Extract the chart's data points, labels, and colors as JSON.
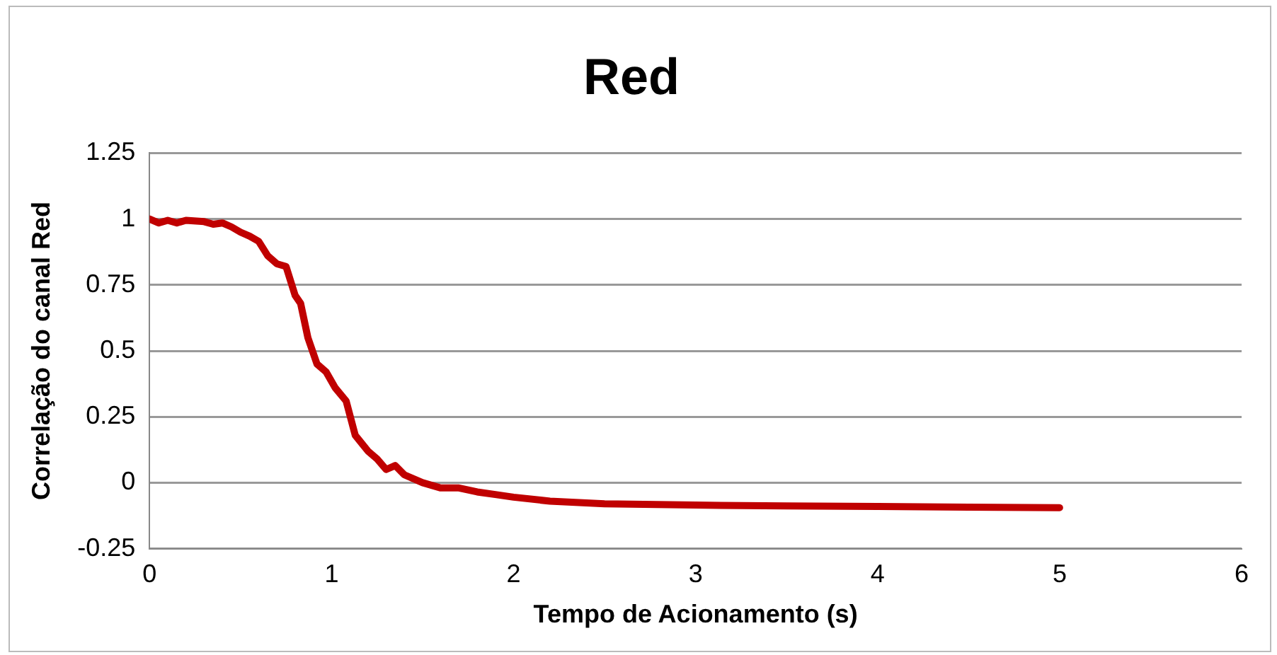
{
  "chart_data": {
    "type": "line",
    "title": "Red",
    "xlabel": "Tempo de Acionamento (s)",
    "ylabel": "Correlação do canal Red",
    "x": [
      0,
      0.05,
      0.1,
      0.15,
      0.2,
      0.3,
      0.35,
      0.4,
      0.45,
      0.5,
      0.55,
      0.6,
      0.65,
      0.7,
      0.75,
      0.8,
      0.83,
      0.87,
      0.92,
      0.97,
      1.02,
      1.08,
      1.13,
      1.2,
      1.25,
      1.3,
      1.35,
      1.4,
      1.5,
      1.6,
      1.7,
      1.8,
      1.9,
      2,
      2.2,
      2.5,
      3,
      3.5,
      4,
      4.5,
      5
    ],
    "series": [
      {
        "color": "#c00000",
        "values": [
          1,
          0.985,
          0.995,
          0.985,
          0.995,
          0.99,
          0.98,
          0.985,
          0.97,
          0.95,
          0.935,
          0.915,
          0.86,
          0.83,
          0.82,
          0.71,
          0.68,
          0.55,
          0.45,
          0.42,
          0.36,
          0.31,
          0.18,
          0.12,
          0.09,
          0.05,
          0.065,
          0.03,
          0,
          -0.02,
          -0.02,
          -0.035,
          -0.045,
          -0.055,
          -0.07,
          -0.08,
          -0.085,
          -0.088,
          -0.09,
          -0.093,
          -0.095
        ]
      }
    ],
    "xlim": [
      0,
      6
    ],
    "xticks": [
      0,
      1,
      2,
      3,
      4,
      5,
      6
    ],
    "ylim": [
      -0.25,
      1.25
    ],
    "yticks": [
      -0.25,
      0,
      0.25,
      0.5,
      0.75,
      1,
      1.25
    ],
    "grid": "y",
    "legend": false,
    "marker": "none",
    "line_style": "solid"
  }
}
